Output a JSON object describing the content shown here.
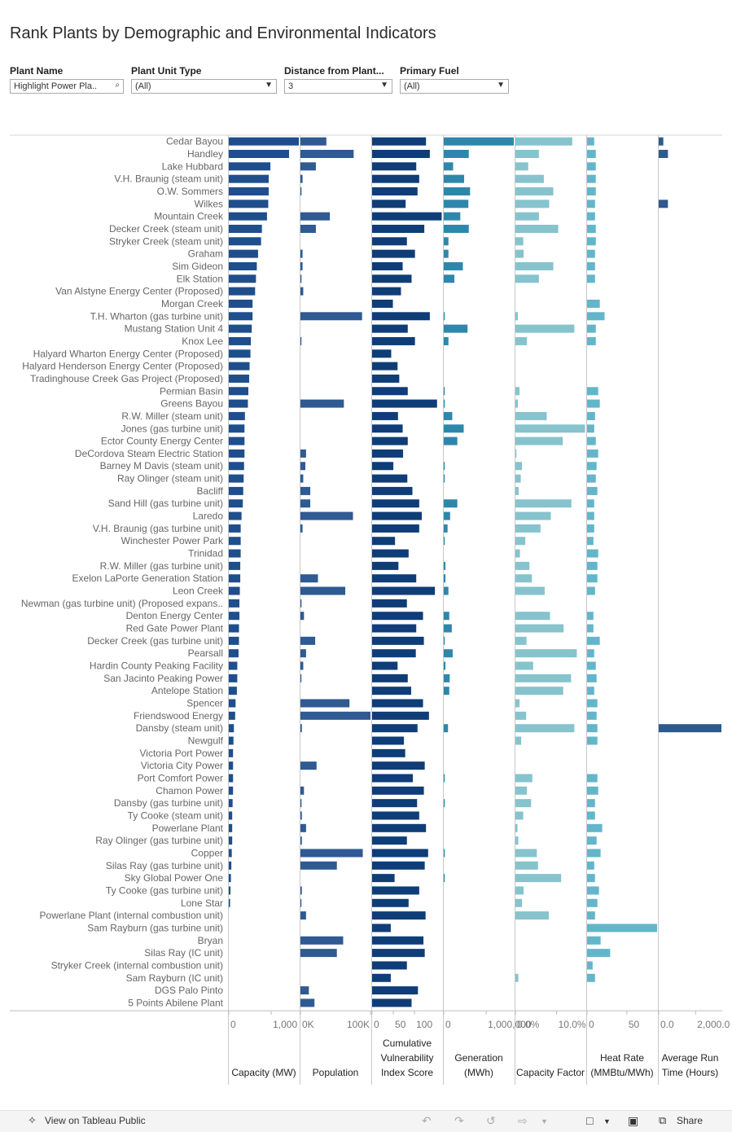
{
  "title": "Rank Plants by Demographic and Environmental Indicators",
  "filters": [
    {
      "label": "Plant Name",
      "value": "Highlight Power Pla..",
      "icon": "search-icon"
    },
    {
      "label": "Plant Unit Type",
      "value": "(All)",
      "icon": "chevron-down-icon"
    },
    {
      "label": "Distance from Plant...",
      "value": "3",
      "icon": "chevron-down-icon"
    },
    {
      "label": "Primary Fuel",
      "value": "(All)",
      "icon": "chevron-down-icon"
    }
  ],
  "footer": {
    "view_on": "View on Tableau Public",
    "share": "Share",
    "undo_icon": "undo-icon",
    "redo_icon": "redo-icon",
    "revert_icon": "revert-icon",
    "forward_icon": "forward-icon",
    "comment_icon": "comment-icon",
    "fullscreen_icon": "fullscreen-icon",
    "share_icon": "share-icon",
    "tableau_icon": "tableau-icon"
  },
  "chart_data": {
    "type": "bar",
    "orientation": "horizontal",
    "categories": [
      "Cedar Bayou",
      "Handley",
      "Lake Hubbard",
      "V.H. Braunig (steam unit)",
      "O.W. Sommers",
      "Wilkes",
      "Mountain Creek",
      "Decker Creek (steam unit)",
      "Stryker Creek (steam unit)",
      "Graham",
      "Sim Gideon",
      "Elk Station",
      "Van Alstyne Energy Center (Proposed)",
      "Morgan Creek",
      "T.H. Wharton (gas turbine unit)",
      "Mustang Station Unit 4",
      "Knox Lee",
      "Halyard Wharton Energy Center (Proposed)",
      "Halyard Henderson Energy Center (Proposed)",
      "Tradinghouse Creek Gas Project (Proposed)",
      "Permian Basin",
      "Greens Bayou",
      "R.W. Miller (steam unit)",
      "Jones (gas turbine unit)",
      "Ector County Energy Center",
      "DeCordova Steam Electric Station",
      "Barney M Davis (steam unit)",
      "Ray Olinger (steam unit)",
      "Bacliff",
      "Sand Hill (gas turbine unit)",
      "Laredo",
      "V.H. Braunig (gas turbine unit)",
      "Winchester Power Park",
      "Trinidad",
      "R.W. Miller (gas turbine unit)",
      "Exelon LaPorte Generation Station",
      "Leon Creek",
      "Newman (gas turbine unit) (Proposed expans..",
      "Denton Energy Center",
      "Red Gate Power Plant",
      "Decker Creek (gas turbine unit)",
      "Pearsall",
      "Hardin County Peaking Facility",
      "San Jacinto Peaking Power",
      "Antelope Station",
      "Spencer",
      "Friendswood Energy",
      "Dansby (steam unit)",
      "Newgulf",
      "Victoria Port Power",
      "Victoria City Power",
      "Port Comfort Power",
      "Chamon Power",
      "Dansby (gas turbine unit)",
      "Ty Cooke (steam unit)",
      "Powerlane Plant",
      "Ray Olinger (gas turbine unit)",
      "Copper",
      "Silas Ray (gas turbine unit)",
      "Sky Global Power One",
      "Ty Cooke (gas turbine unit)",
      "Lone Star",
      "Powerlane Plant (internal combustion unit)",
      "Sam Rayburn (gas turbine unit)",
      "Bryan",
      "Silas Ray (IC unit)",
      "Stryker Creek (internal combustion unit)",
      "Sam Rayburn (IC unit)",
      "DGS Palo Pinto",
      "5 Points Abilene Plant"
    ],
    "series": [
      {
        "name": "Capacity (MW)",
        "color": "#1f4e8c",
        "tick_labels": [
          "0",
          "1,000"
        ],
        "tick_values": [
          0,
          1000
        ],
        "max": 1650,
        "values": [
          1650,
          1420,
          980,
          940,
          940,
          930,
          900,
          780,
          760,
          690,
          660,
          640,
          620,
          560,
          560,
          540,
          520,
          510,
          490,
          480,
          460,
          450,
          380,
          370,
          370,
          370,
          360,
          350,
          340,
          330,
          300,
          280,
          280,
          280,
          270,
          270,
          260,
          250,
          250,
          240,
          240,
          230,
          200,
          200,
          190,
          160,
          150,
          120,
          110,
          100,
          100,
          100,
          100,
          90,
          80,
          80,
          80,
          70,
          60,
          50,
          40,
          30,
          0,
          0,
          0,
          0,
          0,
          0,
          0,
          0
        ]
      },
      {
        "name": "Population",
        "color": "#2f5a92",
        "tick_labels": [
          "0K",
          "100K"
        ],
        "tick_values": [
          0,
          100000
        ],
        "max": 100000,
        "values": [
          37000,
          76000,
          22000,
          3000,
          1500,
          0,
          42000,
          22000,
          0,
          3000,
          3000,
          1500,
          4000,
          0,
          88000,
          0,
          1000,
          0,
          0,
          0,
          0,
          62000,
          0,
          0,
          0,
          8000,
          7000,
          4000,
          14000,
          14000,
          75000,
          3000,
          0,
          0,
          0,
          25000,
          64000,
          1500,
          5000,
          0,
          21000,
          8000,
          4000,
          1000,
          0,
          70000,
          100000,
          2000,
          0,
          0,
          23000,
          0,
          5000,
          1500,
          2000,
          8000,
          2000,
          89000,
          52000,
          0,
          2000,
          1000,
          8000,
          0,
          61000,
          52000,
          0,
          0,
          12000,
          20000
        ]
      },
      {
        "name": "Cumulative Vulnerability Index Score",
        "color": "#0f3d78",
        "tick_labels": [
          "0",
          "50",
          "100"
        ],
        "tick_values": [
          0,
          50,
          100
        ],
        "max": 165,
        "values": [
          127,
          136,
          104,
          111,
          107,
          79,
          164,
          123,
          82,
          101,
          72,
          93,
          68,
          49,
          136,
          84,
          101,
          45,
          60,
          64,
          84,
          153,
          61,
          72,
          84,
          73,
          50,
          83,
          95,
          111,
          117,
          111,
          54,
          86,
          62,
          104,
          148,
          82,
          120,
          104,
          122,
          103,
          60,
          84,
          92,
          120,
          134,
          107,
          75,
          78,
          124,
          96,
          122,
          106,
          111,
          127,
          82,
          132,
          124,
          53,
          111,
          86,
          126,
          44,
          121,
          124,
          82,
          44,
          108,
          93
        ]
      },
      {
        "name": "Generation (MWh)",
        "color": "#2e87ab",
        "tick_labels": [
          "0",
          "1,000,000"
        ],
        "tick_values": [
          0,
          1000000
        ],
        "max": 1650000,
        "values": [
          1650000,
          590000,
          220000,
          480000,
          620000,
          580000,
          390000,
          590000,
          110000,
          110000,
          450000,
          250000,
          0,
          0,
          20000,
          560000,
          110000,
          0,
          0,
          0,
          20000,
          20000,
          200000,
          470000,
          320000,
          0,
          20000,
          20000,
          0,
          320000,
          150000,
          90000,
          20000,
          0,
          40000,
          40000,
          110000,
          0,
          130000,
          190000,
          20000,
          210000,
          40000,
          140000,
          130000,
          0,
          0,
          100000,
          0,
          0,
          0,
          20000,
          0,
          20000,
          0,
          0,
          0,
          20000,
          0,
          20000,
          0,
          0,
          0,
          0,
          0,
          0,
          0,
          0,
          0,
          0
        ]
      },
      {
        "name": "Capacity Factor",
        "color": "#86c3cd",
        "tick_labels": [
          "0.0%",
          "10.0%"
        ],
        "tick_values": [
          0,
          10
        ],
        "max": 17,
        "values": [
          13.8,
          5.7,
          3.1,
          6.9,
          9.2,
          8.2,
          5.7,
          10.4,
          1.9,
          2.0,
          9.2,
          5.7,
          0,
          0,
          0.6,
          14.3,
          2.8,
          0,
          0,
          0,
          1.0,
          0.6,
          7.6,
          16.9,
          11.5,
          0.2,
          1.6,
          1.3,
          0.8,
          13.6,
          8.6,
          6.1,
          2.4,
          1.1,
          3.4,
          4.0,
          7.1,
          0,
          8.4,
          11.7,
          2.7,
          14.9,
          4.3,
          13.5,
          11.6,
          1.0,
          2.6,
          14.3,
          1.4,
          0,
          0,
          4.1,
          2.8,
          3.8,
          1.9,
          0.5,
          0.7,
          5.2,
          5.5,
          11.1,
          2.0,
          1.6,
          8.1,
          0,
          0,
          0,
          0,
          0.7,
          0,
          0
        ]
      },
      {
        "name": "Heat Rate (MMBtu/MWh)",
        "color": "#63b6c9",
        "tick_labels": [
          "0",
          "50"
        ],
        "tick_values": [
          0,
          50
        ],
        "max": 88,
        "values": [
          9,
          11,
          11,
          11,
          11,
          10,
          10,
          11,
          11,
          10,
          10,
          10,
          0,
          16,
          22,
          11,
          11,
          0,
          0,
          0,
          14,
          16,
          10,
          9,
          11,
          14,
          12,
          11,
          13,
          9,
          9,
          9,
          8,
          14,
          13,
          13,
          10,
          0,
          8,
          8,
          16,
          9,
          11,
          12,
          9,
          13,
          12,
          13,
          13,
          0,
          0,
          13,
          14,
          10,
          10,
          19,
          12,
          17,
          9,
          10,
          15,
          13,
          10,
          88,
          17,
          29,
          7,
          10,
          0,
          0
        ]
      },
      {
        "name": "Average Run Time (Hours)",
        "color": "#2d5a8e",
        "tick_labels": [
          "0.0",
          "2,000.0"
        ],
        "tick_values": [
          0,
          2000
        ],
        "max": 3400,
        "values": [
          250,
          500,
          0,
          0,
          0,
          500,
          0,
          0,
          0,
          0,
          0,
          0,
          0,
          0,
          0,
          0,
          0,
          0,
          0,
          0,
          0,
          0,
          0,
          0,
          0,
          0,
          0,
          0,
          0,
          0,
          0,
          0,
          0,
          0,
          0,
          0,
          0,
          0,
          0,
          0,
          0,
          0,
          0,
          0,
          0,
          0,
          0,
          3400,
          0,
          0,
          0,
          0,
          0,
          0,
          0,
          0,
          0,
          0,
          0,
          0,
          0,
          0,
          0,
          0,
          0,
          0,
          0,
          0,
          0,
          0
        ]
      }
    ],
    "column_titles": [
      [
        "Capacity (MW)"
      ],
      [
        "Population"
      ],
      [
        "Cumulative",
        "Vulnerability",
        "Index Score"
      ],
      [
        "Generation",
        "(MWh)"
      ],
      [
        "Capacity Factor"
      ],
      [
        "Heat Rate",
        "(MMBtu/MWh)"
      ],
      [
        "Average Run",
        "Time (Hours)"
      ]
    ]
  }
}
